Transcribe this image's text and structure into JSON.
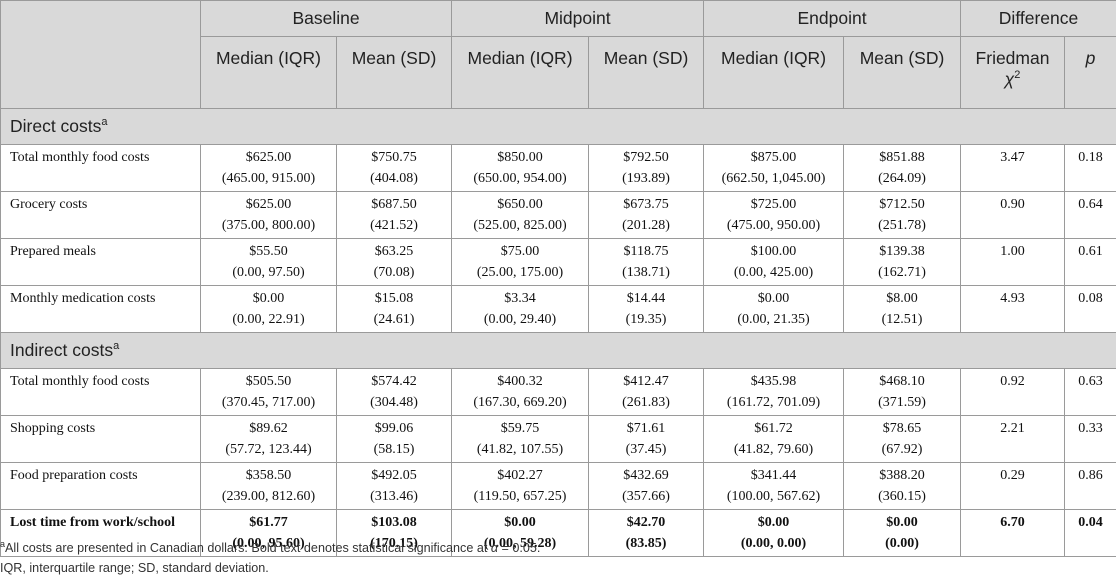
{
  "header": {
    "groups": [
      "Baseline",
      "Midpoint",
      "Endpoint",
      "Difference"
    ],
    "sub": [
      "Median (IQR)",
      "Mean (SD)",
      "Median (IQR)",
      "Mean (SD)",
      "Median (IQR)",
      "Mean (SD)"
    ],
    "friedman": "Friedman",
    "chi": "χ",
    "chi_sup": "2",
    "p": "p"
  },
  "sections": [
    {
      "title": "Direct costs",
      "title_sup": "a",
      "rows": [
        {
          "label": "Total monthly food costs",
          "bold": false,
          "cells": [
            [
              "$625.00",
              "(465.00, 915.00)"
            ],
            [
              "$750.75",
              "(404.08)"
            ],
            [
              "$850.00",
              "(650.00, 954.00)"
            ],
            [
              "$792.50",
              "(193.89)"
            ],
            [
              "$875.00",
              "(662.50, 1,045.00)"
            ],
            [
              "$851.88",
              "(264.09)"
            ],
            [
              "3.47",
              ""
            ],
            [
              "0.18",
              ""
            ]
          ]
        },
        {
          "label": "Grocery costs",
          "bold": false,
          "cells": [
            [
              "$625.00",
              "(375.00, 800.00)"
            ],
            [
              "$687.50",
              "(421.52)"
            ],
            [
              "$650.00",
              "(525.00, 825.00)"
            ],
            [
              "$673.75",
              "(201.28)"
            ],
            [
              "$725.00",
              "(475.00, 950.00)"
            ],
            [
              "$712.50",
              "(251.78)"
            ],
            [
              "0.90",
              ""
            ],
            [
              "0.64",
              ""
            ]
          ]
        },
        {
          "label": "Prepared meals",
          "bold": false,
          "cells": [
            [
              "$55.50",
              "(0.00, 97.50)"
            ],
            [
              "$63.25",
              "(70.08)"
            ],
            [
              "$75.00",
              "(25.00, 175.00)"
            ],
            [
              "$118.75",
              "(138.71)"
            ],
            [
              "$100.00",
              "(0.00, 425.00)"
            ],
            [
              "$139.38",
              "(162.71)"
            ],
            [
              "1.00",
              ""
            ],
            [
              "0.61",
              ""
            ]
          ]
        },
        {
          "label": "Monthly medication costs",
          "bold": false,
          "cells": [
            [
              "$0.00",
              "(0.00, 22.91)"
            ],
            [
              "$15.08",
              "(24.61)"
            ],
            [
              "$3.34",
              "(0.00, 29.40)"
            ],
            [
              "$14.44",
              "(19.35)"
            ],
            [
              "$0.00",
              "(0.00, 21.35)"
            ],
            [
              "$8.00",
              "(12.51)"
            ],
            [
              "4.93",
              ""
            ],
            [
              "0.08",
              ""
            ]
          ]
        }
      ]
    },
    {
      "title": "Indirect costs",
      "title_sup": "a",
      "rows": [
        {
          "label": "Total monthly food costs",
          "bold": false,
          "cells": [
            [
              "$505.50",
              "(370.45, 717.00)"
            ],
            [
              "$574.42",
              "(304.48)"
            ],
            [
              "$400.32",
              "(167.30, 669.20)"
            ],
            [
              "$412.47",
              "(261.83)"
            ],
            [
              "$435.98",
              "(161.72, 701.09)"
            ],
            [
              "$468.10",
              "(371.59)"
            ],
            [
              "0.92",
              ""
            ],
            [
              "0.63",
              ""
            ]
          ]
        },
        {
          "label": "Shopping costs",
          "bold": false,
          "cells": [
            [
              "$89.62",
              "(57.72, 123.44)"
            ],
            [
              "$99.06",
              "(58.15)"
            ],
            [
              "$59.75",
              "(41.82, 107.55)"
            ],
            [
              "$71.61",
              "(37.45)"
            ],
            [
              "$61.72",
              "(41.82, 79.60)"
            ],
            [
              "$78.65",
              "(67.92)"
            ],
            [
              "2.21",
              ""
            ],
            [
              "0.33",
              ""
            ]
          ]
        },
        {
          "label": "Food preparation costs",
          "bold": false,
          "cells": [
            [
              "$358.50",
              "(239.00, 812.60)"
            ],
            [
              "$492.05",
              "(313.46)"
            ],
            [
              "$402.27",
              "(119.50, 657.25)"
            ],
            [
              "$432.69",
              "(357.66)"
            ],
            [
              "$341.44",
              "(100.00, 567.62)"
            ],
            [
              "$388.20",
              "(360.15)"
            ],
            [
              "0.29",
              ""
            ],
            [
              "0.86",
              ""
            ]
          ]
        },
        {
          "label": "Lost time from work/school",
          "bold": true,
          "cells": [
            [
              "$61.77",
              "(0.00, 95.60)"
            ],
            [
              "$103.08",
              "(170.15)"
            ],
            [
              "$0.00",
              "(0.00, 59.28)"
            ],
            [
              "$42.70",
              "(83.85)"
            ],
            [
              "$0.00",
              "(0.00, 0.00)"
            ],
            [
              "$0.00",
              "(0.00)"
            ],
            [
              "6.70",
              ""
            ],
            [
              "0.04",
              ""
            ]
          ]
        }
      ]
    }
  ],
  "footnotes": {
    "note_a_marker": "a",
    "note_a_text": "All costs are presented in Canadian dollars. Bold text denotes statistical significance at ",
    "alpha": "α",
    "note_a_tail": " = 0.05.",
    "abbreviations": "IQR, interquartile range; SD, standard deviation."
  }
}
